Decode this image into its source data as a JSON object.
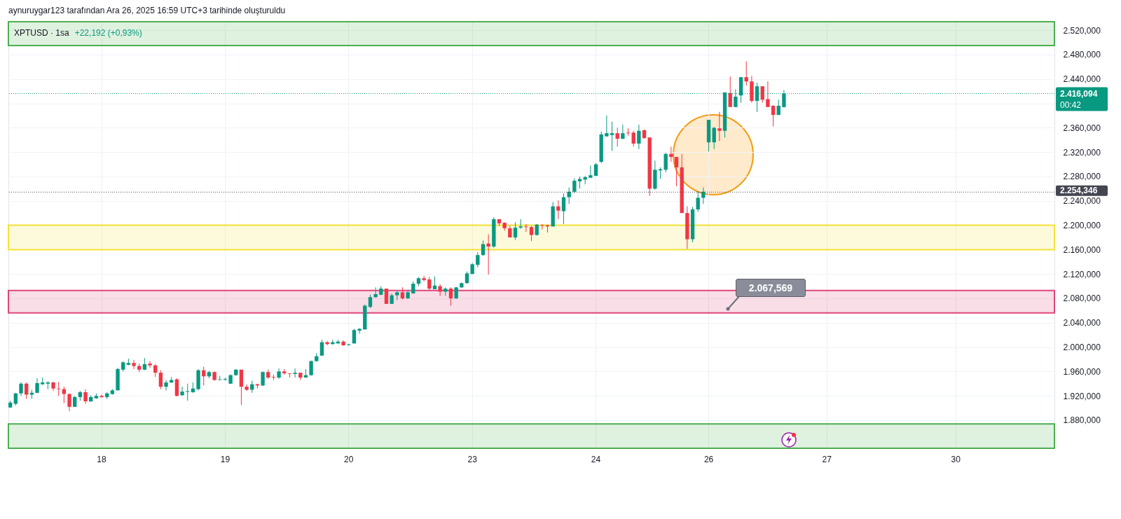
{
  "chart_data": {
    "type": "candlestick",
    "title": "XPTUSD · 1sa",
    "subtitle": "+22,192 (+0,93%)",
    "annotations": [
      "aynuruygar123 tarafından Ara 26, 2025 16:59 UTC+3 tarihinde oluşturuldu",
      "00:42",
      "2.067,569"
    ],
    "categories": [
      null,
      null,
      null,
      null,
      null,
      null,
      null,
      null,
      null,
      null,
      null,
      null,
      null,
      null,
      null,
      null,
      null,
      "18",
      null,
      null,
      null,
      null,
      null,
      null,
      null,
      null,
      null,
      null,
      null,
      null,
      null,
      null,
      null,
      null,
      null,
      null,
      null,
      null,
      null,
      null,
      "19",
      null,
      null,
      null,
      null,
      null,
      null,
      null,
      null,
      null,
      null,
      null,
      null,
      null,
      null,
      null,
      null,
      null,
      null,
      null,
      null,
      null,
      null,
      "20",
      null,
      null,
      null,
      null,
      null,
      null,
      null,
      null,
      null,
      null,
      null,
      null,
      null,
      null,
      null,
      null,
      null,
      null,
      null,
      null,
      null,
      null,
      "23",
      null,
      null,
      null,
      null,
      null,
      null,
      null,
      null,
      null,
      null,
      null,
      null,
      null,
      null,
      null,
      null,
      null,
      null,
      null,
      null,
      null,
      null,
      "24",
      null,
      null,
      null,
      null,
      null,
      null,
      null,
      null,
      null,
      null,
      null,
      null,
      null,
      null,
      null,
      null,
      null,
      null,
      null,
      null,
      "26",
      null,
      null,
      null,
      null,
      null,
      null,
      null,
      null,
      null,
      null,
      null,
      null,
      null,
      null,
      null,
      null,
      null,
      null,
      null,
      null,
      null,
      "27",
      null,
      null,
      null,
      null,
      null,
      null,
      null,
      null,
      null,
      null,
      null,
      null,
      null,
      null,
      null,
      null,
      null,
      null,
      null,
      null,
      null,
      null,
      null,
      "30",
      null,
      null,
      null,
      null,
      null,
      null,
      null,
      null,
      null,
      null,
      null,
      null,
      null,
      null,
      null,
      null,
      null,
      null
    ],
    "ohlc": [
      [
        1901,
        1912,
        1900,
        1909
      ],
      [
        1907,
        1925,
        1904,
        1924
      ],
      [
        1924,
        1942,
        1920,
        1940
      ],
      [
        1940,
        1942,
        1915,
        1922
      ],
      [
        1922,
        1930,
        1915,
        1925
      ],
      [
        1925,
        1949,
        1924,
        1941
      ],
      [
        1939,
        1950,
        1938,
        1942
      ],
      [
        1940,
        1944,
        1931,
        1942
      ],
      [
        1942,
        1943,
        1928,
        1932
      ],
      [
        1932,
        1943,
        1920,
        1931
      ],
      [
        1931,
        1935,
        1908,
        1923
      ],
      [
        1923,
        1924,
        1895,
        1902
      ],
      [
        1902,
        1920,
        1902,
        1918
      ],
      [
        1918,
        1928,
        1912,
        1926
      ],
      [
        1926,
        1931,
        1907,
        1911
      ],
      [
        1911,
        1921,
        1910,
        1918
      ],
      [
        1916,
        1924,
        1915,
        1920
      ],
      [
        1920,
        1922,
        1917,
        1918
      ],
      [
        1918,
        1926,
        1915,
        1924
      ],
      [
        1923,
        1931,
        1922,
        1929
      ],
      [
        1929,
        1966,
        1929,
        1964
      ],
      [
        1963,
        1977,
        1960,
        1975
      ],
      [
        1971,
        1981,
        1970,
        1974
      ],
      [
        1974,
        1979,
        1964,
        1969
      ],
      [
        1969,
        1973,
        1959,
        1963
      ],
      [
        1963,
        1982,
        1962,
        1972
      ],
      [
        1973,
        1977,
        1966,
        1970
      ],
      [
        1970,
        1972,
        1951,
        1958
      ],
      [
        1958,
        1962,
        1931,
        1935
      ],
      [
        1935,
        1946,
        1929,
        1942
      ],
      [
        1942,
        1951,
        1941,
        1946
      ],
      [
        1947,
        1949,
        1919,
        1920
      ],
      [
        1921,
        1935,
        1920,
        1927
      ],
      [
        1927,
        1940,
        1912,
        1927
      ],
      [
        1926,
        1942,
        1925,
        1932
      ],
      [
        1931,
        1964,
        1929,
        1962
      ],
      [
        1962,
        1968,
        1937,
        1952
      ],
      [
        1952,
        1961,
        1949,
        1959
      ],
      [
        1959,
        1960,
        1945,
        1946
      ],
      [
        1946,
        1953,
        1946,
        1947
      ],
      [
        1947,
        1950,
        1945,
        1947
      ],
      [
        1940,
        1955,
        1940,
        1954
      ],
      [
        1954,
        1964,
        1953,
        1963
      ],
      [
        1963,
        1963,
        1905,
        1935
      ],
      [
        1935,
        1939,
        1928,
        1930
      ],
      [
        1930,
        1945,
        1925,
        1939
      ],
      [
        1939,
        1940,
        1932,
        1937
      ],
      [
        1937,
        1960,
        1936,
        1959
      ],
      [
        1959,
        1963,
        1948,
        1950
      ],
      [
        1951,
        1955,
        1946,
        1950
      ],
      [
        1950,
        1965,
        1948,
        1960
      ],
      [
        1960,
        1964,
        1955,
        1957
      ],
      [
        1957,
        1957,
        1950,
        1956
      ],
      [
        1956,
        1965,
        1950,
        1958
      ],
      [
        1958,
        1958,
        1946,
        1950
      ],
      [
        1950,
        1964,
        1950,
        1954
      ],
      [
        1954,
        1978,
        1953,
        1977
      ],
      [
        1977,
        1990,
        1976,
        1985
      ],
      [
        1986,
        2012,
        1986,
        2008
      ],
      [
        2008,
        2010,
        2003,
        2005
      ],
      [
        2005,
        2012,
        2004,
        2008
      ],
      [
        2006,
        2012,
        2006,
        2009
      ],
      [
        2009,
        2011,
        2002,
        2003
      ],
      [
        2004,
        2005,
        2002,
        2004
      ],
      [
        2006,
        2030,
        2006,
        2028
      ],
      [
        2027,
        2031,
        2022,
        2030
      ],
      [
        2029,
        2070,
        2029,
        2068
      ],
      [
        2066,
        2086,
        2064,
        2082
      ],
      [
        2082,
        2098,
        2081,
        2087
      ],
      [
        2086,
        2100,
        2085,
        2096
      ],
      [
        2096,
        2096,
        2071,
        2071
      ],
      [
        2071,
        2088,
        2071,
        2085
      ],
      [
        2085,
        2092,
        2077,
        2090
      ],
      [
        2090,
        2098,
        2078,
        2080
      ],
      [
        2080,
        2094,
        2079,
        2090
      ],
      [
        2088,
        2108,
        2088,
        2104
      ],
      [
        2104,
        2115,
        2100,
        2113
      ],
      [
        2113,
        2117,
        2108,
        2110
      ],
      [
        2111,
        2115,
        2093,
        2096
      ],
      [
        2095,
        2116,
        2095,
        2101
      ],
      [
        2100,
        2103,
        2084,
        2091
      ],
      [
        2091,
        2098,
        2084,
        2096
      ],
      [
        2096,
        2098,
        2068,
        2080
      ],
      [
        2080,
        2099,
        2079,
        2098
      ],
      [
        2098,
        2106,
        2097,
        2105
      ],
      [
        2105,
        2124,
        2104,
        2121
      ],
      [
        2120,
        2138,
        2120,
        2136
      ],
      [
        2135,
        2156,
        2131,
        2151
      ],
      [
        2151,
        2175,
        2150,
        2169
      ],
      [
        2170,
        2185,
        2119,
        2165
      ],
      [
        2165,
        2213,
        2163,
        2210
      ],
      [
        2210,
        2210,
        2199,
        2203
      ],
      [
        2204,
        2205,
        2191,
        2195
      ],
      [
        2195,
        2199,
        2180,
        2180
      ],
      [
        2180,
        2205,
        2176,
        2196
      ],
      [
        2196,
        2210,
        2194,
        2198
      ],
      [
        2198,
        2202,
        2189,
        2197
      ],
      [
        2197,
        2199,
        2174,
        2184
      ],
      [
        2184,
        2202,
        2183,
        2201
      ],
      [
        2200,
        2202,
        2193,
        2199
      ],
      [
        2200,
        2201,
        2188,
        2198
      ],
      [
        2198,
        2238,
        2198,
        2231
      ],
      [
        2231,
        2241,
        2210,
        2224
      ],
      [
        2223,
        2252,
        2202,
        2246
      ],
      [
        2246,
        2262,
        2235,
        2255
      ],
      [
        2255,
        2277,
        2253,
        2273
      ],
      [
        2272,
        2280,
        2260,
        2276
      ],
      [
        2275,
        2281,
        2267,
        2279
      ],
      [
        2278,
        2298,
        2278,
        2282
      ],
      [
        2281,
        2302,
        2281,
        2300
      ],
      [
        2304,
        2354,
        2302,
        2349
      ],
      [
        2346,
        2380,
        2345,
        2351
      ],
      [
        2348,
        2370,
        2322,
        2351
      ],
      [
        2351,
        2360,
        2329,
        2342
      ],
      [
        2342,
        2365,
        2341,
        2351
      ],
      [
        2352,
        2359,
        2347,
        2351
      ],
      [
        2352,
        2355,
        2329,
        2334
      ],
      [
        2334,
        2365,
        2325,
        2355
      ],
      [
        2356,
        2357,
        2342,
        2343
      ],
      [
        2344,
        2344,
        2248,
        2260
      ],
      [
        2260,
        2306,
        2258,
        2291
      ],
      [
        2290,
        2295,
        2276,
        2292
      ],
      [
        2291,
        2319,
        2287,
        2317
      ],
      [
        2317,
        2329,
        2304,
        2312
      ],
      [
        2312,
        2312,
        2264,
        2295
      ],
      [
        2295,
        2317,
        2220,
        2220
      ],
      [
        2220,
        2231,
        2161,
        2177
      ],
      [
        2177,
        2230,
        2172,
        2226
      ],
      [
        2226,
        2256,
        2222,
        2245
      ],
      [
        2245,
        2262,
        2235,
        2255
      ],
      [
        2336,
        2373,
        2321,
        2373
      ],
      [
        2336,
        2361,
        2325,
        2360
      ],
      [
        2359,
        2386,
        2338,
        2355
      ],
      [
        2355,
        2418,
        2344,
        2418
      ],
      [
        2417,
        2444,
        2394,
        2394
      ],
      [
        2394,
        2423,
        2394,
        2411
      ],
      [
        2413,
        2443,
        2401,
        2443
      ],
      [
        2443,
        2469,
        2429,
        2436
      ],
      [
        2436,
        2445,
        2401,
        2404
      ],
      [
        2404,
        2434,
        2386,
        2428
      ],
      [
        2428,
        2428,
        2401,
        2406
      ],
      [
        2407,
        2436,
        2394,
        2394
      ],
      [
        2396,
        2397,
        2362,
        2381
      ],
      [
        2381,
        2406,
        2381,
        2396
      ],
      [
        2394,
        2422,
        2393,
        2416.094
      ],
      null,
      null,
      null,
      null,
      null,
      null,
      null,
      null,
      null,
      null,
      null,
      null,
      null,
      null,
      null,
      null,
      null,
      null,
      null,
      null,
      null,
      null,
      null,
      null,
      null,
      null,
      null,
      null,
      null,
      null,
      null,
      null,
      null,
      null,
      null,
      null,
      null,
      null,
      null,
      null,
      null,
      null,
      null,
      null,
      null,
      null,
      null,
      null,
      null,
      null
    ],
    "colors": [
      "#089981",
      "#089981",
      "#089981",
      "#f23645",
      "#089981",
      "#089981",
      "#089981",
      "#089981",
      "#f23645",
      "#f23645",
      "#f23645",
      "#f23645",
      "#089981",
      "#089981",
      "#f23645",
      "#089981",
      "#089981",
      "#f23645",
      "#089981",
      "#089981",
      "#089981",
      "#089981",
      "#089981",
      "#f23645",
      "#f23645",
      "#089981",
      "#f23645",
      "#f23645",
      "#f23645",
      "#089981",
      "#089981",
      "#f23645",
      "#089981",
      "#089981",
      "#089981",
      "#089981",
      "#f23645",
      "#089981",
      "#f23645",
      "#089981",
      "#089981",
      "#089981",
      "#089981",
      "#f23645",
      "#f23645",
      "#089981",
      "#f23645",
      "#089981",
      "#f23645",
      "#f23645",
      "#089981",
      "#f23645",
      "#f23645",
      "#089981",
      "#f23645",
      "#089981",
      "#089981",
      "#089981",
      "#089981",
      "#f23645",
      "#089981",
      "#089981",
      "#f23645",
      "#089981",
      "#089981",
      "#089981",
      "#089981",
      "#089981",
      "#089981",
      "#089981",
      "#f23645",
      "#089981",
      "#089981",
      "#f23645",
      "#089981",
      "#089981",
      "#089981",
      "#f23645",
      "#f23645",
      "#089981",
      "#f23645",
      "#089981",
      "#f23645",
      "#089981",
      "#089981",
      "#089981",
      "#089981",
      "#089981",
      "#089981",
      "#f23645",
      "#089981",
      "#f23645",
      "#f23645",
      "#f23645",
      "#089981",
      "#089981",
      "#f23645",
      "#f23645",
      "#089981",
      "#f23645",
      "#f23645",
      "#089981",
      "#f23645",
      "#089981",
      "#089981",
      "#089981",
      "#089981",
      "#089981",
      "#089981",
      "#089981",
      "#089981",
      "#089981",
      "#089981",
      "#f23645",
      "#089981",
      "#f23645",
      "#f23645",
      "#089981",
      "#f23645",
      "#f23645",
      "#089981",
      "#089981",
      "#089981",
      "#f23645",
      "#f23645",
      "#f23645",
      "#f23645",
      "#089981",
      "#089981",
      "#089981",
      "#089981",
      "#089981",
      "#f23645",
      "#089981",
      "#f23645",
      "#089981",
      "#089981",
      "#f23645",
      "#f23645",
      "#089981",
      "#f23645",
      "#f23645",
      "#f23645",
      "#089981",
      "#089981",
      null,
      null,
      null,
      null,
      null,
      null,
      null,
      null,
      null,
      null,
      null,
      null,
      null,
      null,
      null,
      null,
      null,
      null,
      null,
      null,
      null,
      null,
      null,
      null,
      null,
      null,
      null,
      null,
      null,
      null,
      null,
      null,
      null,
      null,
      null,
      null,
      null,
      null,
      null,
      null,
      null,
      null,
      null,
      null,
      null,
      null,
      null,
      null,
      null,
      null
    ],
    "ylim": [
      1834,
      2534
    ],
    "yticks": [
      {
        "value": 1880,
        "label": "1.880,000"
      },
      {
        "value": 1920,
        "label": "1.920,000"
      },
      {
        "value": 1960,
        "label": "1.960,000"
      },
      {
        "value": 2000,
        "label": "2.000,000"
      },
      {
        "value": 2040,
        "label": "2.040,000"
      },
      {
        "value": 2080,
        "label": "2.080,000"
      },
      {
        "value": 2120,
        "label": "2.120,000"
      },
      {
        "value": 2160,
        "label": "2.160,000"
      },
      {
        "value": 2200,
        "label": "2.200,000"
      },
      {
        "value": 2240,
        "label": "2.240,000"
      },
      {
        "value": 2280,
        "label": "2.280,000"
      },
      {
        "value": 2320,
        "label": "2.320,000"
      },
      {
        "value": 2360,
        "label": "2.360,000"
      },
      {
        "value": 2400,
        "label": null
      },
      {
        "value": 2440,
        "label": "2.440,000"
      },
      {
        "value": 2480,
        "label": "2.480,000"
      },
      {
        "value": 2520,
        "label": "2.520,000"
      }
    ],
    "grid": true,
    "ref_lines": [
      {
        "axis": "y",
        "value": 2416.094,
        "label": "2.416,094",
        "color": "#089981",
        "line_style": "dotted"
      },
      {
        "axis": "y",
        "value": 2254.346,
        "label": "2.254,346",
        "color": "#434651",
        "line_style": "dotted"
      }
    ],
    "bands": [
      {
        "axis": "y",
        "from": 2495,
        "to": 2534,
        "color": "#4caf50"
      },
      {
        "axis": "y",
        "from": 2160,
        "to": 2200,
        "color": "#f5e13b"
      },
      {
        "axis": "y",
        "from": 2056,
        "to": 2093,
        "color": "#e0457b"
      },
      {
        "axis": "y",
        "from": 1834,
        "to": 1874,
        "color": "#4caf50"
      }
    ]
  }
}
